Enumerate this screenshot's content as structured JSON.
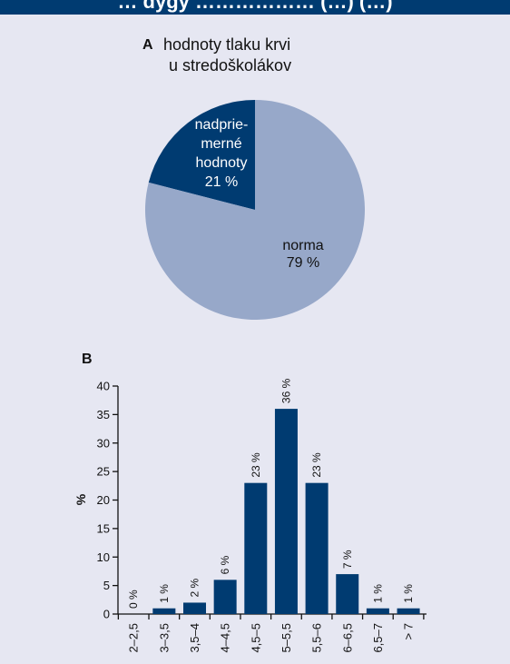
{
  "header": {
    "title": "… dygy ……………… (…) (…)"
  },
  "colors": {
    "header_bg": "#003B71",
    "panel_bg": "#E6E7F2",
    "dark": "#003B71",
    "light": "#97A8C9"
  },
  "chart_data": [
    {
      "type": "pie",
      "panel_letter": "A",
      "title_lines": [
        "hodnoty tlaku krvi",
        "u stredoškolákov"
      ],
      "slices": [
        {
          "label_lines": [
            "nadprie-",
            "merné",
            "hodnoty",
            "21 %"
          ],
          "value": 21,
          "color": "#003B71",
          "text_color": "#ffffff"
        },
        {
          "label_lines": [
            "norma",
            "79 %"
          ],
          "value": 79,
          "color": "#97A8C9",
          "text_color": "#111111"
        }
      ]
    },
    {
      "type": "bar",
      "panel_letter": "B",
      "ylabel": "%",
      "ylim": [
        0,
        40
      ],
      "yticks": [
        0,
        5,
        10,
        15,
        20,
        25,
        30,
        35,
        40
      ],
      "categories": [
        "2–2,5",
        "3–3,5",
        "3,5–4",
        "4–4,5",
        "4,5–5",
        "5–5,5",
        "5,5–6",
        "6–6,5",
        "6,5–7",
        "> 7"
      ],
      "values": [
        0,
        1,
        2,
        6,
        23,
        36,
        23,
        7,
        1,
        1
      ],
      "value_labels": [
        "0 %",
        "1 %",
        "2 %",
        "6 %",
        "23 %",
        "36 %",
        "23 %",
        "7 %",
        "1 %",
        "1 %"
      ],
      "bar_color": "#003B71"
    }
  ]
}
